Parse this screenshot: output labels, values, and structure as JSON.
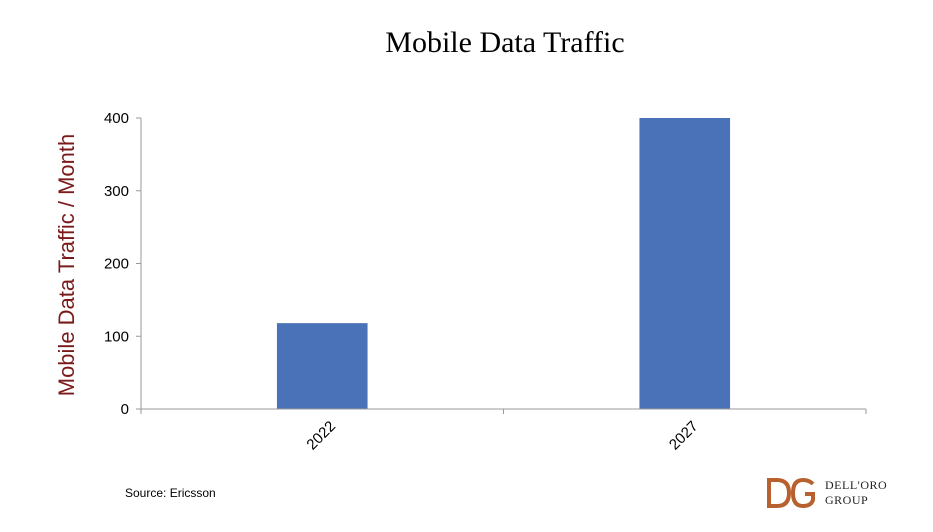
{
  "chart_data": {
    "type": "bar",
    "title": "Mobile Data Traffic",
    "xlabel": "",
    "ylabel": "Mobile Data Traffic / Month",
    "categories": [
      "2022",
      "2027"
    ],
    "values": [
      118,
      400
    ],
    "ylim": [
      0,
      400
    ],
    "yticks": [
      0,
      100,
      200,
      300,
      400
    ],
    "grid": false,
    "legend": "none"
  },
  "source": "Source: Ericsson",
  "logo": {
    "line1": "DELL'ORO",
    "line2": "GROUP"
  },
  "colors": {
    "bar": "#4a72b8",
    "ylabel": "#7a1a1a",
    "axis": "#999999",
    "logo": "#b8612f"
  }
}
